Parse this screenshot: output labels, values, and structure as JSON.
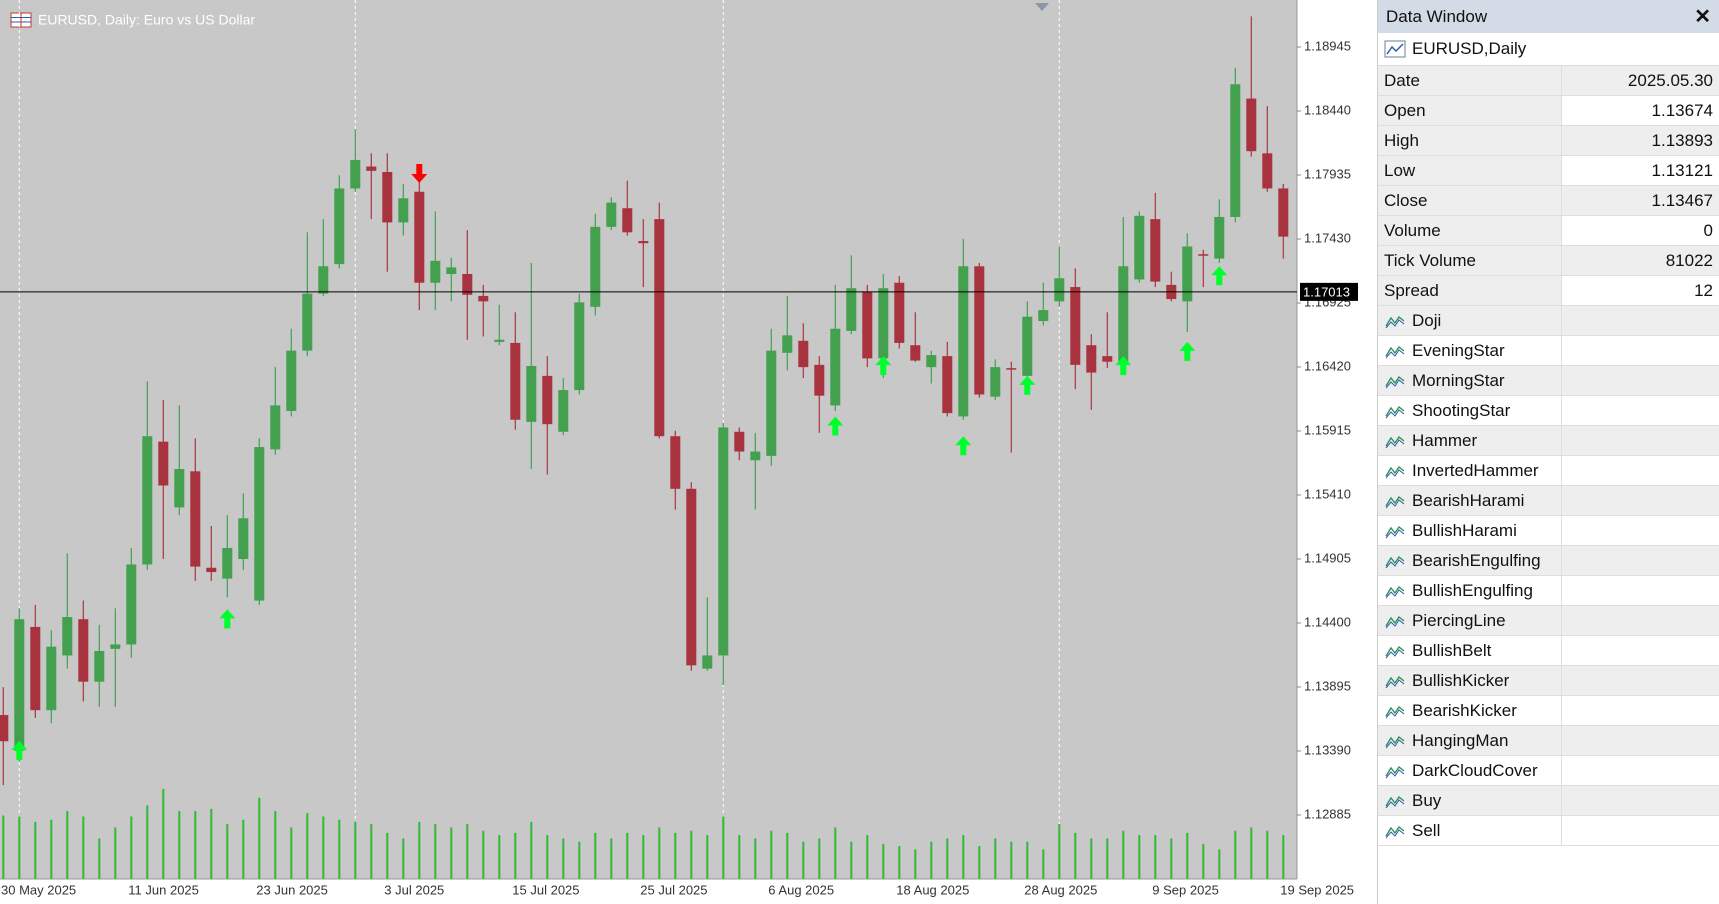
{
  "chart_data": {
    "type": "candlestick",
    "title": "EURUSD, Daily:  Euro vs US Dollar",
    "categories": [
      "30 May 2025",
      null,
      null,
      null,
      null,
      null,
      null,
      null,
      "11 Jun 2025",
      null,
      null,
      null,
      null,
      null,
      null,
      null,
      "23 Jun 2025",
      null,
      null,
      null,
      null,
      null,
      null,
      null,
      "3 Jul 2025",
      null,
      null,
      null,
      null,
      null,
      null,
      null,
      "15 Jul 2025",
      null,
      null,
      null,
      null,
      null,
      null,
      null,
      "25 Jul 2025",
      null,
      null,
      null,
      null,
      null,
      null,
      null,
      "6 Aug 2025",
      null,
      null,
      null,
      null,
      null,
      null,
      null,
      "18 Aug 2025",
      null,
      null,
      null,
      null,
      null,
      null,
      null,
      "28 Aug 2025",
      null,
      null,
      null,
      null,
      null,
      null,
      null,
      "9 Sep 2025",
      null,
      null,
      null,
      null,
      null,
      null,
      null,
      "19 Sep 2025"
    ],
    "open": [
      1.13674,
      1.13392,
      1.14369,
      1.13712,
      1.14144,
      1.1443,
      1.13937,
      1.14196,
      1.14231,
      1.14862,
      1.15831,
      1.15312,
      1.15597,
      1.14836,
      1.1475,
      1.14905,
      1.14577,
      1.1577,
      1.16073,
      1.16549,
      1.16999,
      1.17232,
      1.17829,
      1.18002,
      1.17959,
      1.17561,
      1.17803,
      1.17085,
      1.17154,
      1.17154,
      1.16981,
      1.16618,
      1.1661,
      1.15987,
      1.1635,
      1.15909,
      1.16238,
      1.16895,
      1.17526,
      1.17673,
      1.17414,
      1.17587,
      1.15874,
      1.15459,
      1.1404,
      1.14144,
      1.15909,
      1.15684,
      1.15719,
      1.16532,
      1.16627,
      1.16437,
      1.16117,
      1.16705,
      1.17016,
      1.16488,
      1.17085,
      1.16592,
      1.16419,
      1.16506,
      1.1603,
      1.17215,
      1.16186,
      1.16411,
      1.1635,
      1.16783,
      1.16938,
      1.17051,
      1.16592,
      1.16506,
      1.16462,
      1.17111,
      1.17587,
      1.17068,
      1.16938,
      1.1731,
      1.17276,
      1.17604,
      1.18538,
      1.18106,
      1.17829
    ],
    "high": [
      1.13893,
      1.14516,
      1.14542,
      1.14343,
      1.14949,
      1.14577,
      1.14386,
      1.14516,
      1.14992,
      1.16307,
      1.1616,
      1.16117,
      1.15857,
      1.15165,
      1.15251,
      1.15424,
      1.15857,
      1.16419,
      1.16722,
      1.17483,
      1.17587,
      1.17933,
      1.18296,
      1.18106,
      1.18106,
      1.17864,
      1.1789,
      1.17648,
      1.17284,
      1.175,
      1.17068,
      1.16912,
      1.16852,
      1.17241,
      1.16506,
      1.16333,
      1.16999,
      1.1763,
      1.1776,
      1.1789,
      1.17587,
      1.17717,
      1.15917,
      1.15511,
      1.14603,
      1.15978,
      1.15943,
      1.159,
      1.16722,
      1.16981,
      1.16765,
      1.16506,
      1.17068,
      1.17302,
      1.17068,
      1.17154,
      1.17137,
      1.16852,
      1.16549,
      1.16618,
      1.17431,
      1.17241,
      1.1648,
      1.16462,
      1.16938,
      1.17085,
      1.17371,
      1.17198,
      1.16679,
      1.16852,
      1.17604,
      1.17648,
      1.17795,
      1.17172,
      1.17475,
      1.17345,
      1.17743,
      1.18781,
      1.19187,
      1.18478,
      1.17864
    ],
    "low": [
      1.13121,
      1.13305,
      1.13651,
      1.13608,
      1.1404,
      1.13781,
      1.13738,
      1.13738,
      1.14127,
      1.14819,
      1.14905,
      1.15251,
      1.14732,
      1.14732,
      1.14603,
      1.14819,
      1.14542,
      1.15727,
      1.1603,
      1.16506,
      1.16981,
      1.17198,
      1.17803,
      1.17587,
      1.17172,
      1.17457,
      1.16869,
      1.16869,
      1.16938,
      1.16635,
      1.16661,
      1.16592,
      1.15926,
      1.15615,
      1.15572,
      1.15883,
      1.16203,
      1.16826,
      1.175,
      1.17457,
      1.17051,
      1.15857,
      1.15295,
      1.14023,
      1.14023,
      1.13911,
      1.15684,
      1.15295,
      1.15641,
      1.16393,
      1.16333,
      1.159,
      1.16073,
      1.16679,
      1.16419,
      1.16333,
      1.16566,
      1.16462,
      1.16289,
      1.1603,
      1.16004,
      1.16177,
      1.1616,
      1.15745,
      1.16333,
      1.16748,
      1.16895,
      1.16246,
      1.16082,
      1.16411,
      1.16437,
      1.17085,
      1.17051,
      1.16938,
      1.16696,
      1.17051,
      1.17241,
      1.17561,
      1.1808,
      1.17803,
      1.17276
    ],
    "close": [
      1.13467,
      1.1443,
      1.13712,
      1.14213,
      1.14447,
      1.13937,
      1.14179,
      1.14231,
      1.14862,
      1.15874,
      1.15485,
      1.15615,
      1.14845,
      1.14802,
      1.14992,
      1.15226,
      1.15788,
      1.16117,
      1.16549,
      1.16999,
      1.17215,
      1.17829,
      1.18054,
      1.17968,
      1.17561,
      1.17751,
      1.17085,
      1.17258,
      1.17206,
      1.1699,
      1.16938,
      1.16635,
      1.16004,
      1.16428,
      1.15969,
      1.16238,
      1.1693,
      1.17526,
      1.17717,
      1.17483,
      1.17397,
      1.15874,
      1.15459,
      1.14066,
      1.14144,
      1.15943,
      1.15753,
      1.15753,
      1.16549,
      1.1667,
      1.16419,
      1.16194,
      1.16722,
      1.17042,
      1.16488,
      1.17042,
      1.1661,
      1.16471,
      1.16514,
      1.16056,
      1.17215,
      1.16203,
      1.16419,
      1.16402,
      1.16817,
      1.16869,
      1.1712,
      1.16437,
      1.16376,
      1.16462,
      1.17215,
      1.17613,
      1.17094,
      1.16956,
      1.17371,
      1.17302,
      1.17604,
      1.18651,
      1.18123,
      1.17829,
      1.17449
    ],
    "volume": [
      81022,
      79800,
      72800,
      75600,
      86800,
      79800,
      51800,
      65800,
      79800,
      93800,
      114800,
      86800,
      86800,
      89600,
      70000,
      75600,
      103600,
      86800,
      65800,
      84000,
      79800,
      75600,
      72800,
      70000,
      58800,
      51800,
      72800,
      70000,
      65800,
      70000,
      61600,
      56000,
      58800,
      72800,
      56000,
      51800,
      47600,
      58800,
      51800,
      58800,
      56000,
      65800,
      58800,
      61600,
      56000,
      79800,
      56000,
      51800,
      61600,
      58800,
      47600,
      51800,
      65800,
      47600,
      56000,
      44800,
      42000,
      37800,
      47600,
      51800,
      56000,
      42000,
      51800,
      47600,
      47600,
      37800,
      70000,
      58800,
      51800,
      51800,
      61600,
      56000,
      56000,
      51800,
      58800,
      44800,
      37800,
      61600,
      65800,
      61600,
      56000
    ],
    "buy": [
      null,
      1.1347,
      null,
      null,
      null,
      null,
      null,
      null,
      null,
      null,
      null,
      null,
      null,
      null,
      1.14508,
      null,
      null,
      null,
      null,
      null,
      null,
      null,
      null,
      null,
      null,
      null,
      null,
      null,
      null,
      null,
      null,
      null,
      null,
      null,
      null,
      null,
      null,
      null,
      null,
      null,
      null,
      null,
      null,
      null,
      null,
      null,
      null,
      null,
      null,
      null,
      null,
      null,
      1.1603,
      null,
      null,
      1.16506,
      null,
      null,
      null,
      null,
      1.15874,
      null,
      null,
      null,
      1.1635,
      null,
      null,
      null,
      null,
      null,
      1.16506,
      null,
      null,
      null,
      1.16618,
      null,
      1.17215,
      null,
      null,
      null,
      null
    ],
    "sell": [
      null,
      null,
      null,
      null,
      null,
      null,
      null,
      null,
      null,
      null,
      null,
      null,
      null,
      null,
      null,
      null,
      null,
      null,
      null,
      null,
      null,
      null,
      null,
      null,
      null,
      null,
      1.17872,
      null,
      null,
      null,
      null,
      null,
      null,
      null,
      null,
      null,
      null,
      null,
      null,
      null,
      null,
      null,
      null,
      null,
      null,
      null,
      null,
      null,
      null,
      null,
      null,
      null,
      null,
      null,
      null,
      null,
      null,
      null,
      null,
      null,
      null,
      null,
      null,
      null,
      null,
      null,
      null,
      null,
      null,
      null,
      null,
      null,
      null,
      null,
      null,
      null,
      null,
      null,
      null,
      null,
      null
    ],
    "ylim": [
      1.1238,
      1.1929
    ],
    "yticks": [
      1.12885,
      {
        "value": 1.1339,
        "label": "1.13390"
      },
      1.13895,
      {
        "value": 1.144,
        "label": "1.14400"
      },
      1.14905,
      {
        "value": 1.1541,
        "label": "1.15410"
      },
      1.15915,
      {
        "value": 1.1642,
        "label": "1.16420"
      },
      1.16925,
      {
        "value": 1.1743,
        "label": "1.17430"
      },
      1.17935,
      {
        "value": 1.1844,
        "label": "1.18440"
      },
      1.18945
    ],
    "price_line": 1.17013,
    "grid": false,
    "up_color": "#43a04f",
    "down_color": "#a8333f",
    "volume_color": "#32b832",
    "buy_color": "#00ff2a",
    "sell_color": "#ff0000",
    "background": "#c8c8c8"
  },
  "data_window": {
    "title": "Data Window",
    "symbol": "EURUSD,Daily",
    "rows": [
      {
        "label": "Date",
        "value": "2025.05.30"
      },
      {
        "label": "Open",
        "value": 1.13674
      },
      {
        "label": "High",
        "value": 1.13893
      },
      {
        "label": "Low",
        "value": 1.13121
      },
      {
        "label": "Close",
        "value": 1.13467
      },
      {
        "label": "Volume",
        "value": 0
      },
      {
        "label": "Tick Volume",
        "value": 81022
      },
      {
        "label": "Spread",
        "value": 12
      }
    ],
    "indicators": [
      "Doji",
      "EveningStar",
      "MorningStar",
      "ShootingStar",
      "Hammer",
      "InvertedHammer",
      "BearishHarami",
      "BullishHarami",
      "BearishEngulfing",
      "BullishEngulfing",
      "PiercingLine",
      "BullishBelt",
      "BullishKicker",
      "BearishKicker",
      "HangingMan",
      "DarkCloudCover",
      "Buy",
      "Sell"
    ]
  }
}
